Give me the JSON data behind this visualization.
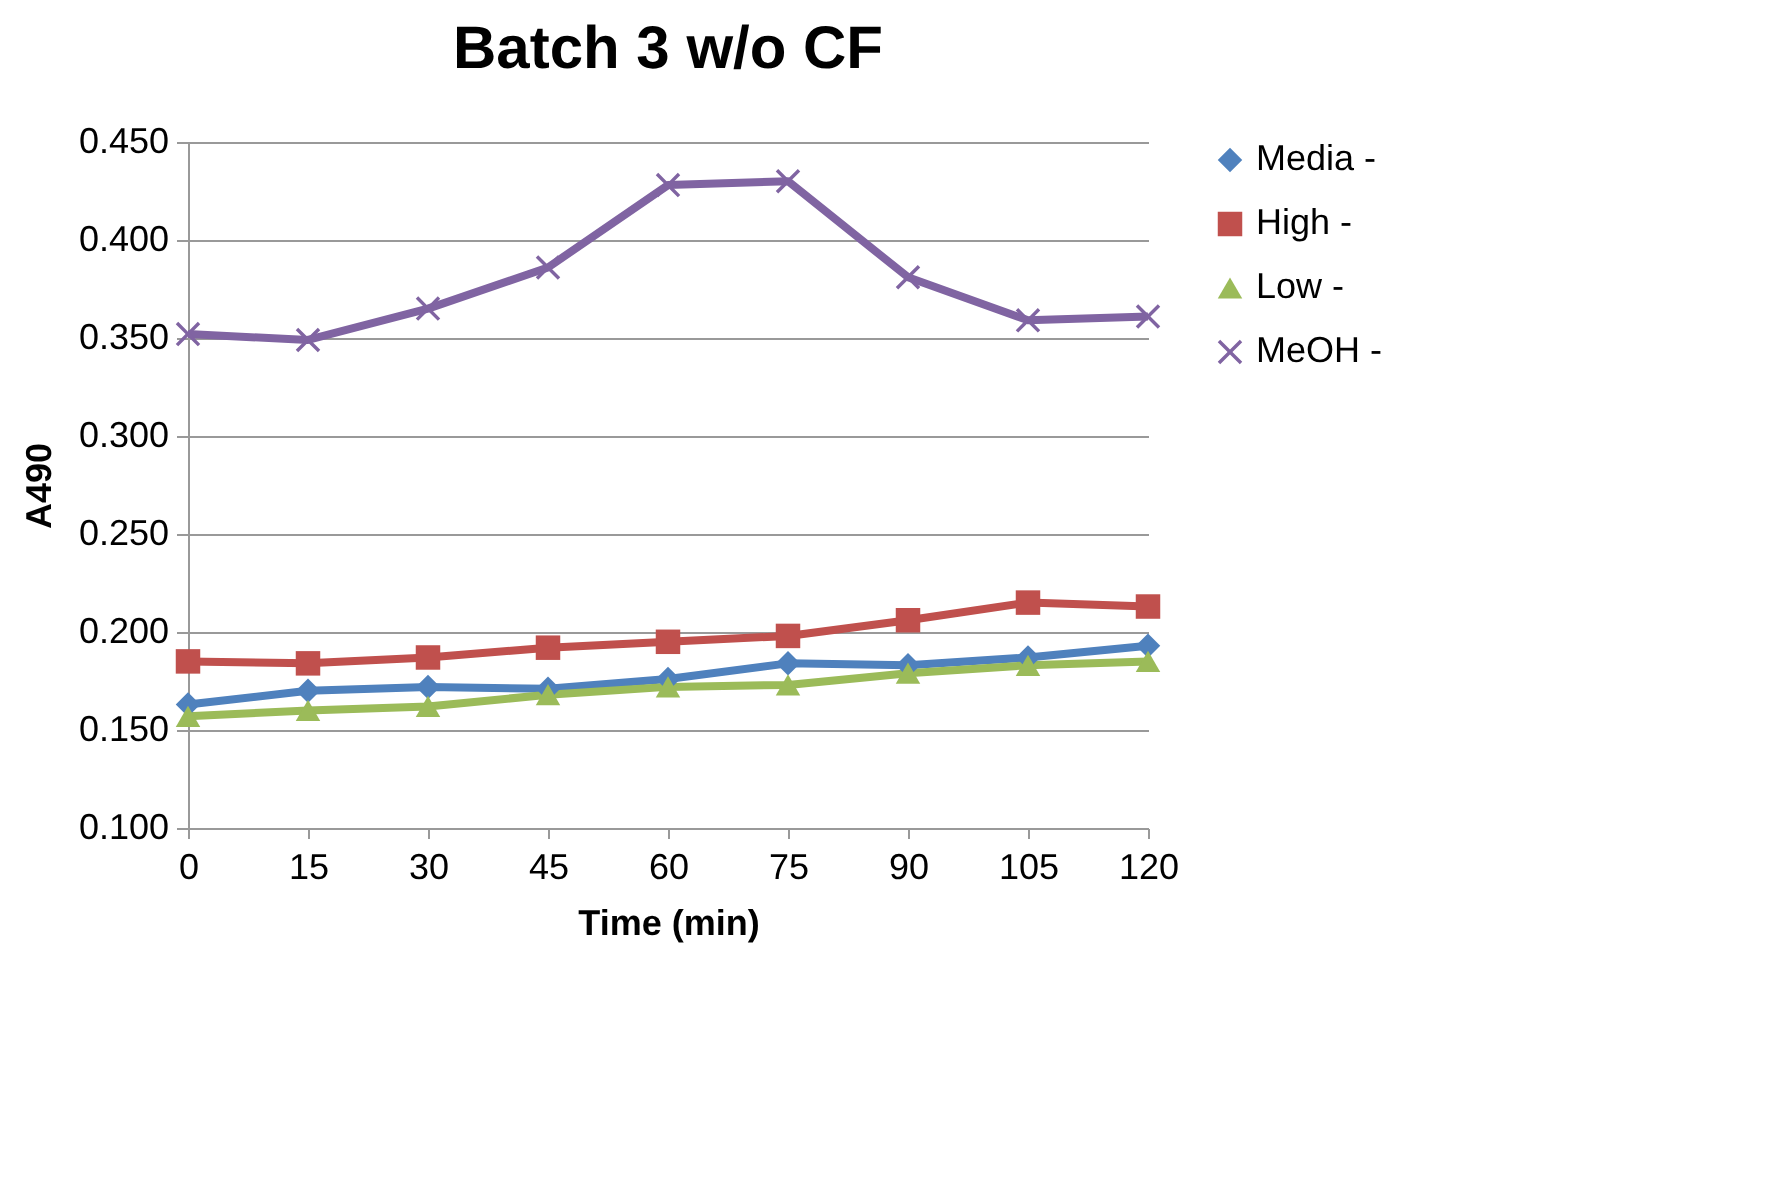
{
  "chart_data": {
    "type": "line",
    "title": "Batch 3 w/o CF",
    "xlabel": "Time (min)",
    "ylabel": "A490",
    "categories": [
      "0",
      "15",
      "30",
      "45",
      "60",
      "75",
      "90",
      "105",
      "120"
    ],
    "series": [
      {
        "name": "Media -",
        "color": "#4f81bd",
        "marker": "diamond",
        "values": [
          0.163,
          0.17,
          0.172,
          0.171,
          0.176,
          0.184,
          0.183,
          0.187,
          0.193
        ]
      },
      {
        "name": "High -",
        "color": "#c0504d",
        "marker": "square",
        "values": [
          0.185,
          0.184,
          0.187,
          0.192,
          0.195,
          0.198,
          0.206,
          0.215,
          0.213
        ]
      },
      {
        "name": "Low -",
        "color": "#9bbb59",
        "marker": "triangle",
        "values": [
          0.157,
          0.16,
          0.162,
          0.168,
          0.172,
          0.173,
          0.179,
          0.183,
          0.185
        ]
      },
      {
        "name": "MeOH -",
        "color": "#8064a2",
        "marker": "cross",
        "values": [
          0.352,
          0.349,
          0.365,
          0.386,
          0.428,
          0.43,
          0.381,
          0.359,
          0.361
        ]
      }
    ],
    "ylim": [
      0.1,
      0.45
    ],
    "yticks": [
      {
        "value": 0.1,
        "label": "0.100"
      },
      {
        "value": 0.15,
        "label": "0.150"
      },
      {
        "value": 0.2,
        "label": "0.200"
      },
      {
        "value": 0.25,
        "label": "0.250"
      },
      {
        "value": 0.3,
        "label": "0.300"
      },
      {
        "value": 0.35,
        "label": "0.350"
      },
      {
        "value": 0.4,
        "label": "0.400"
      },
      {
        "value": 0.45,
        "label": "0.450"
      }
    ],
    "grid": "y",
    "legend": "right",
    "line_style": "solid"
  }
}
